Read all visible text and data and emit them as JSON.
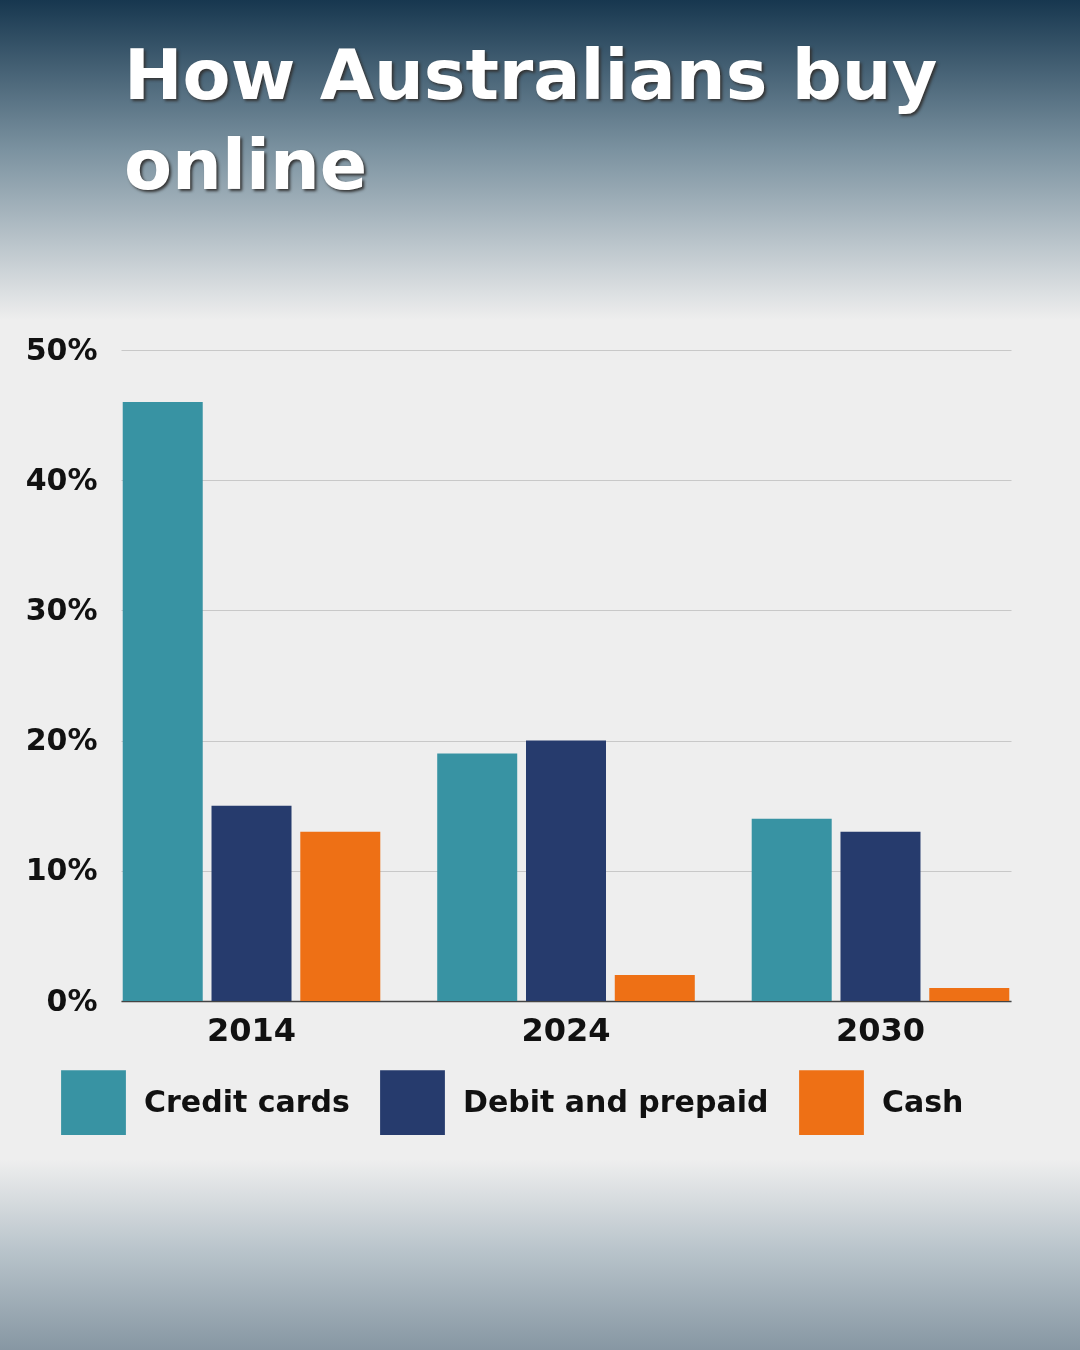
{
  "chart_data": {
    "type": "bar",
    "title": "How Australians buy online",
    "categories": [
      "2014",
      "2024",
      "2030"
    ],
    "series": [
      {
        "name": "Credit cards",
        "color": "#3893a3",
        "values": [
          46,
          19,
          14
        ]
      },
      {
        "name": "Debit and prepaid",
        "color": "#263b6d",
        "values": [
          15,
          20,
          13
        ]
      },
      {
        "name": "Cash",
        "color": "#ee7015",
        "values": [
          13,
          2,
          1
        ]
      }
    ],
    "ylim": [
      0,
      50
    ],
    "yticks": [
      {
        "value": 0,
        "label": "0%"
      },
      {
        "value": 10,
        "label": "10%"
      },
      {
        "value": 20,
        "label": "20%"
      },
      {
        "value": 30,
        "label": "30%"
      },
      {
        "value": 40,
        "label": "40%"
      },
      {
        "value": 50,
        "label": "50%"
      }
    ],
    "grid": "y",
    "legend": "bottom"
  }
}
